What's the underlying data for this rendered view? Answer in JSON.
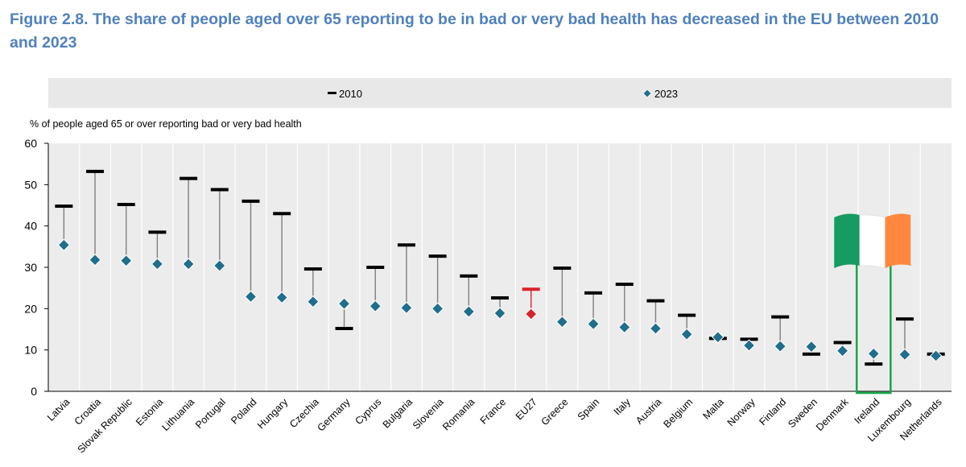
{
  "title": "Figure 2.8. The share of people aged over 65 reporting to be in bad or very bad health has decreased in the EU between 2010 and 2023",
  "chart_data": {
    "type": "scatter",
    "title": "Figure 2.8. The share of people aged over 65 reporting to be in bad or very bad health has decreased in the EU between 2010 and 2023",
    "ylabel": "% of people aged 65 or over reporting bad or very bad health",
    "ylim": [
      0,
      60
    ],
    "yticks": [
      "0",
      "10",
      "20",
      "30",
      "40",
      "50",
      "60"
    ],
    "grid": true,
    "legend_position": "top",
    "categories": [
      "Latvia",
      "Croatia",
      "Slovak Republic",
      "Estonia",
      "Lithuania",
      "Portugal",
      "Poland",
      "Hungary",
      "Czechia",
      "Germany",
      "Cyprus",
      "Bulgaria",
      "Slovenia",
      "Romania",
      "France",
      "EU27",
      "Greece",
      "Spain",
      "Italy",
      "Austria",
      "Belgium",
      "Malta",
      "Norway",
      "Finland",
      "Sweden",
      "Denmark",
      "Ireland",
      "Luxembourg",
      "Netherlands"
    ],
    "series": [
      {
        "name": "2010",
        "marker": "dash",
        "values": [
          44.8,
          53.2,
          45.2,
          38.5,
          51.5,
          48.8,
          46.0,
          43.0,
          29.6,
          15.2,
          30.0,
          35.4,
          32.7,
          27.9,
          22.6,
          24.7,
          29.8,
          23.8,
          25.9,
          21.9,
          18.4,
          12.8,
          12.6,
          18.0,
          9.0,
          11.8,
          6.6,
          17.5,
          9.0
        ]
      },
      {
        "name": "2023",
        "marker": "diamond",
        "values": [
          35.4,
          31.8,
          31.6,
          30.8,
          30.8,
          30.4,
          22.9,
          22.7,
          21.7,
          21.2,
          20.6,
          20.2,
          20.0,
          19.3,
          18.9,
          18.7,
          16.8,
          16.3,
          15.5,
          15.2,
          13.8,
          13.1,
          11.1,
          10.9,
          10.8,
          9.8,
          9.1,
          8.9,
          8.6
        ]
      }
    ],
    "highlight": {
      "category": "EU27",
      "color": "#d9232a"
    },
    "annotation": {
      "category": "Ireland",
      "flag_colors": [
        "#169b62",
        "#ffffff",
        "#ff883e"
      ],
      "box_color": "#1aa74a"
    },
    "colors": {
      "diamond": "#1f6e8c",
      "dash": "#000000",
      "connector": "#7f7f7f",
      "title": "#4f81bd",
      "legend_bg": "#e8e8e8",
      "plot_bg": "#ececec",
      "grid": "#ffffff"
    }
  }
}
